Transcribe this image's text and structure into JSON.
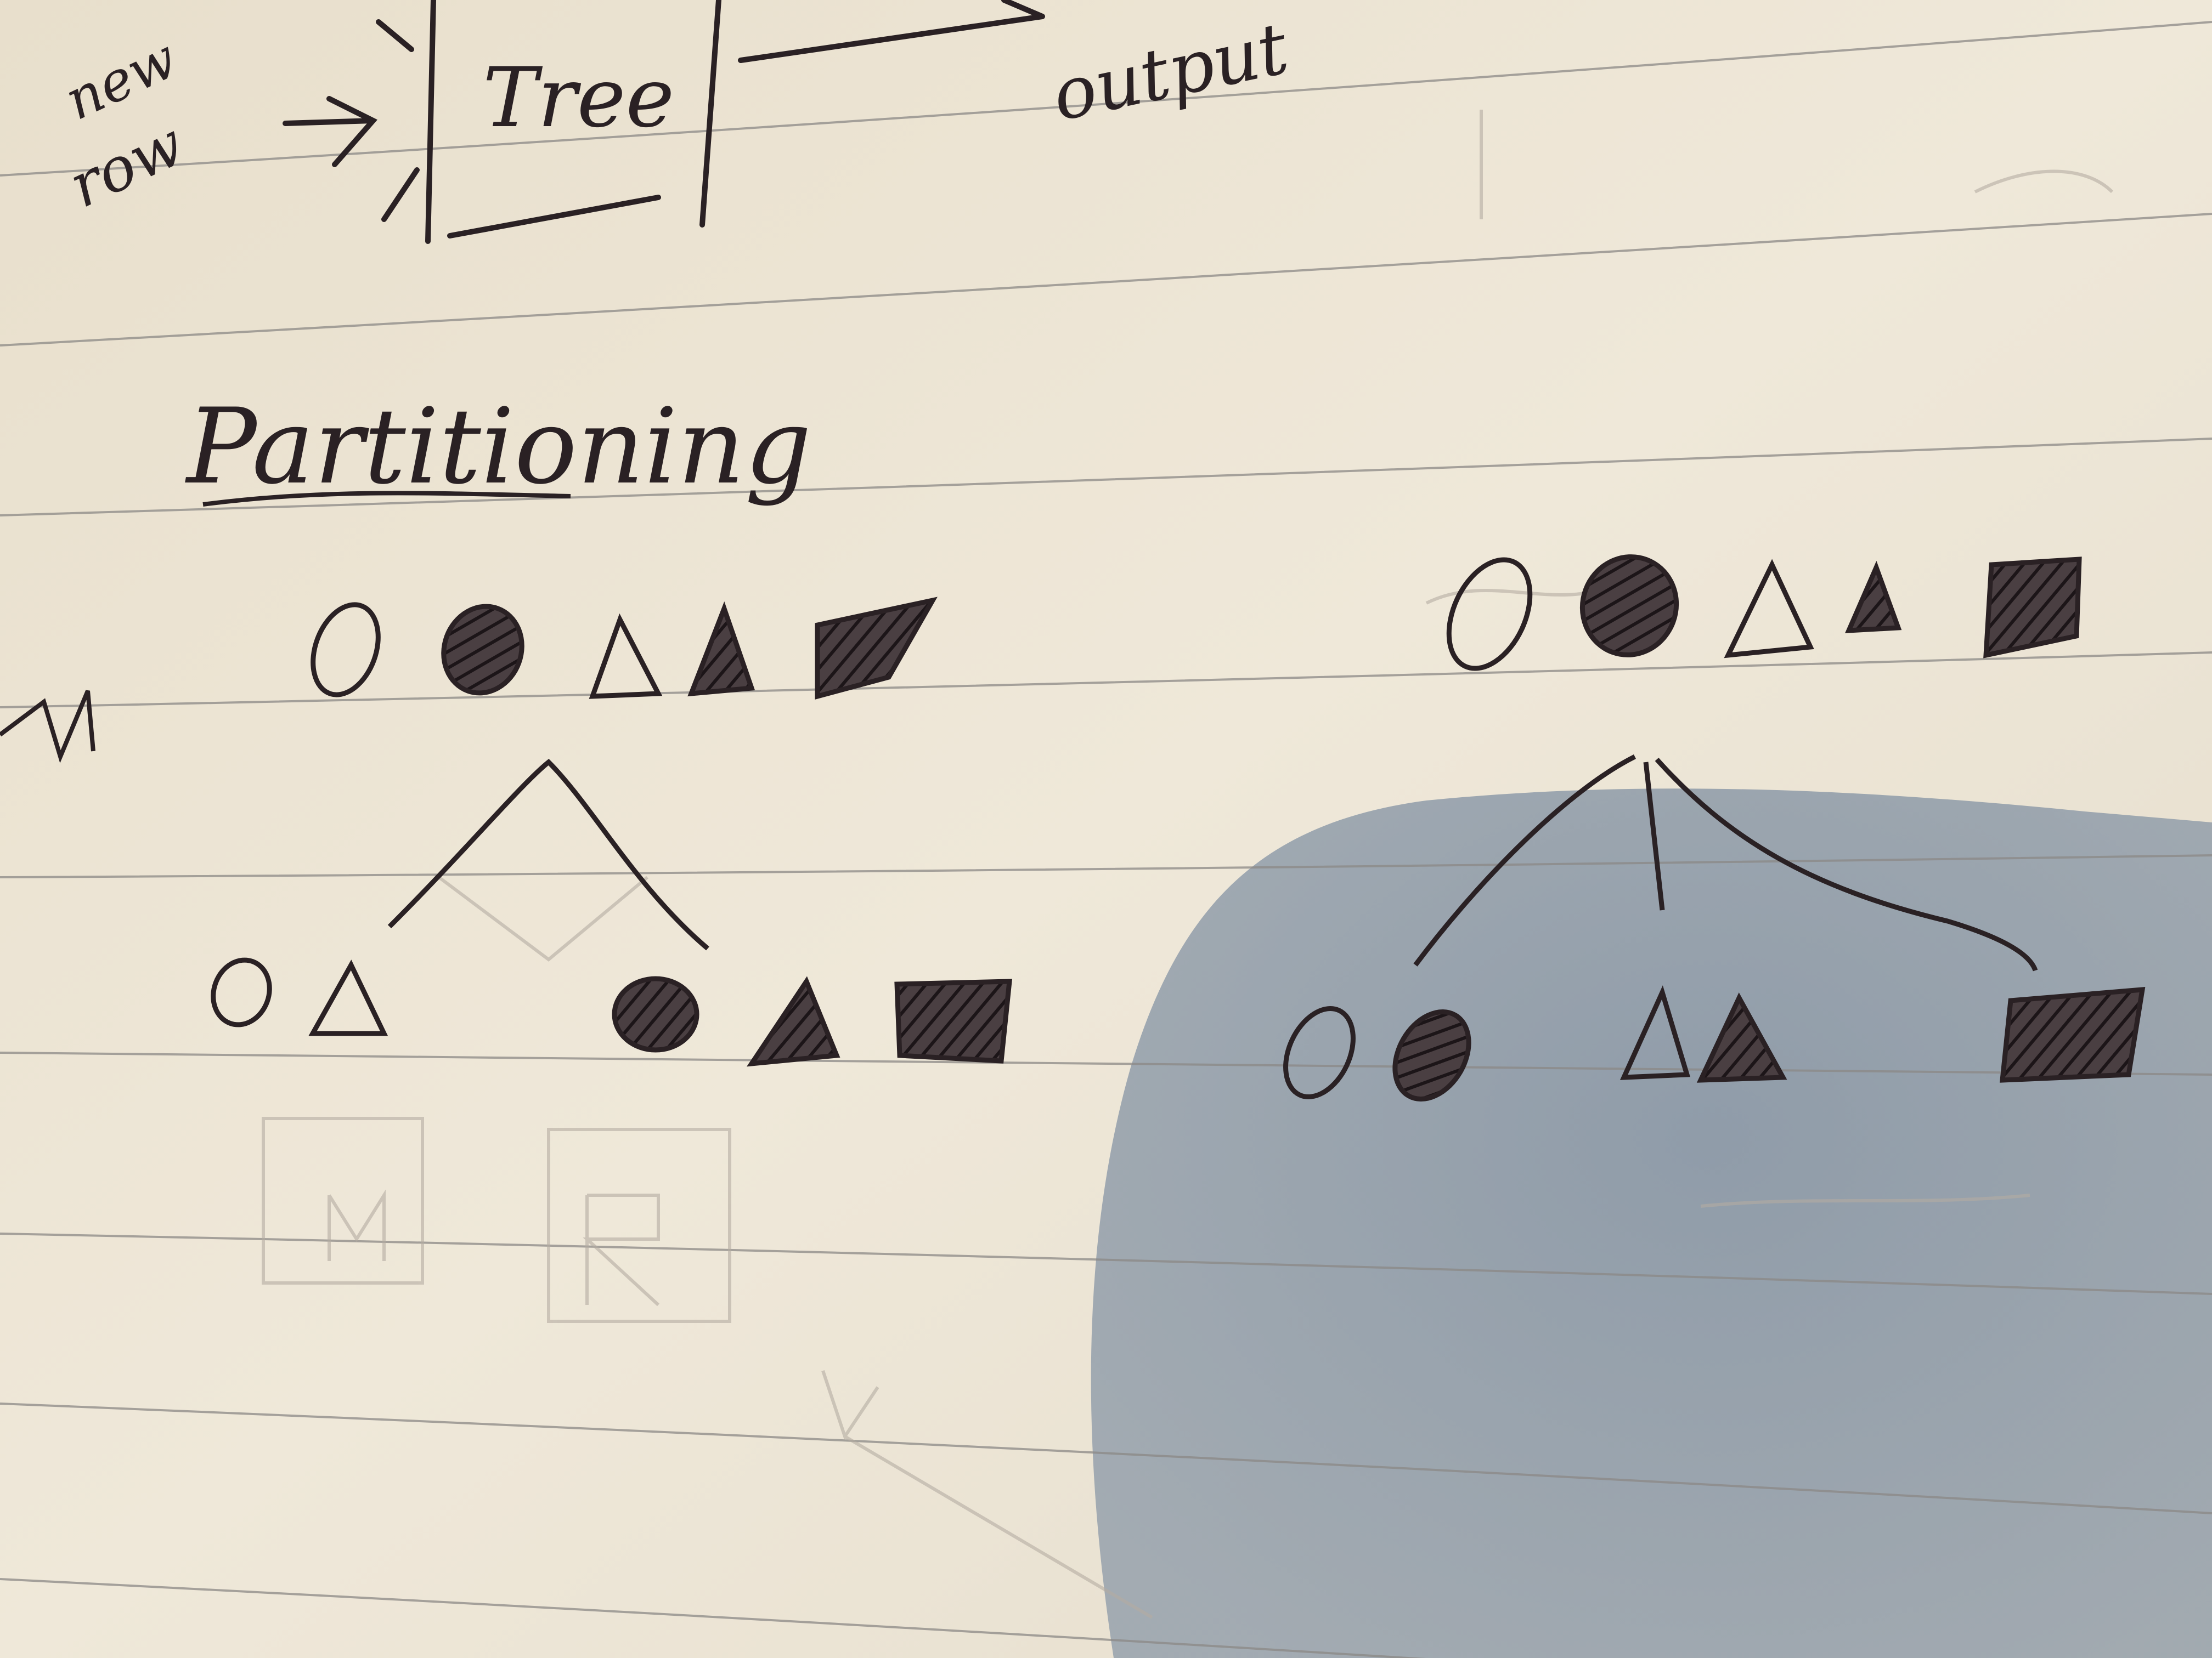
{
  "header_flow": {
    "input_label_line1": "new",
    "input_label_line2": "row",
    "box_label": "Tree",
    "output_label": "output"
  },
  "section": {
    "title": "Partitioning"
  },
  "colors": {
    "paper": "#ece4d3",
    "ink": "#2a2124",
    "rule_line": "#8b8886",
    "shadow": "#7f8ea0",
    "faded_ink": "#b4aca2"
  },
  "left_tree": {
    "root_items": [
      "circle-empty",
      "circle-hatched",
      "triangle-empty",
      "triangle-hatched",
      "square-hatched"
    ],
    "left_child_items": [
      "circle-empty",
      "triangle-empty"
    ],
    "right_child_items": [
      "circle-hatched",
      "triangle-hatched",
      "square-hatched"
    ]
  },
  "right_tree": {
    "root_items": [
      "circle-empty",
      "circle-hatched",
      "triangle-empty",
      "triangle-hatched",
      "square-hatched"
    ],
    "child_1_items": [
      "circle-empty",
      "circle-hatched"
    ],
    "child_2_items": [
      "triangle-empty",
      "triangle-hatched"
    ],
    "child_3_items": [
      "square-hatched"
    ]
  }
}
